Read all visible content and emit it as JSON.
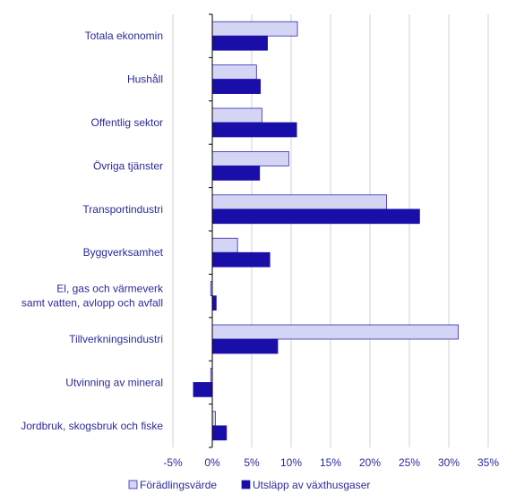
{
  "chart_data": {
    "type": "bar",
    "orientation": "horizontal",
    "title": "",
    "xlabel": "",
    "ylabel": "",
    "categories": [
      "Totala ekonomin",
      "Hushåll",
      "Offentlig sektor",
      "Övriga tjänster",
      "Transportindustri",
      "Byggverksamhet",
      "El, gas och värmeverk\nsamt vatten, avlopp och avfall",
      "Tillverkningsindustri",
      "Utvinning av mineral",
      "Jordbruk, skogsbruk och fiske"
    ],
    "series": [
      {
        "name": "Förädlingsvärde",
        "color": "#d4d4f4",
        "values": [
          10.8,
          5.6,
          6.3,
          9.7,
          22.1,
          3.2,
          -0.2,
          31.2,
          -0.2,
          0.4
        ]
      },
      {
        "name": "Utsläpp av växthusgaser",
        "color": "#1a0ea8",
        "values": [
          7.0,
          6.1,
          10.7,
          6.0,
          26.3,
          7.3,
          0.5,
          8.3,
          -2.4,
          1.8
        ]
      }
    ],
    "xlim": [
      -5,
      35
    ],
    "xticks": [
      -5,
      0,
      5,
      10,
      15,
      20,
      25,
      30,
      35
    ],
    "xtick_labels": [
      "-5%",
      "0%",
      "5%",
      "10%",
      "15%",
      "20%",
      "25%",
      "30%",
      "35%"
    ],
    "grid": "vertical",
    "legend_position": "bottom"
  }
}
